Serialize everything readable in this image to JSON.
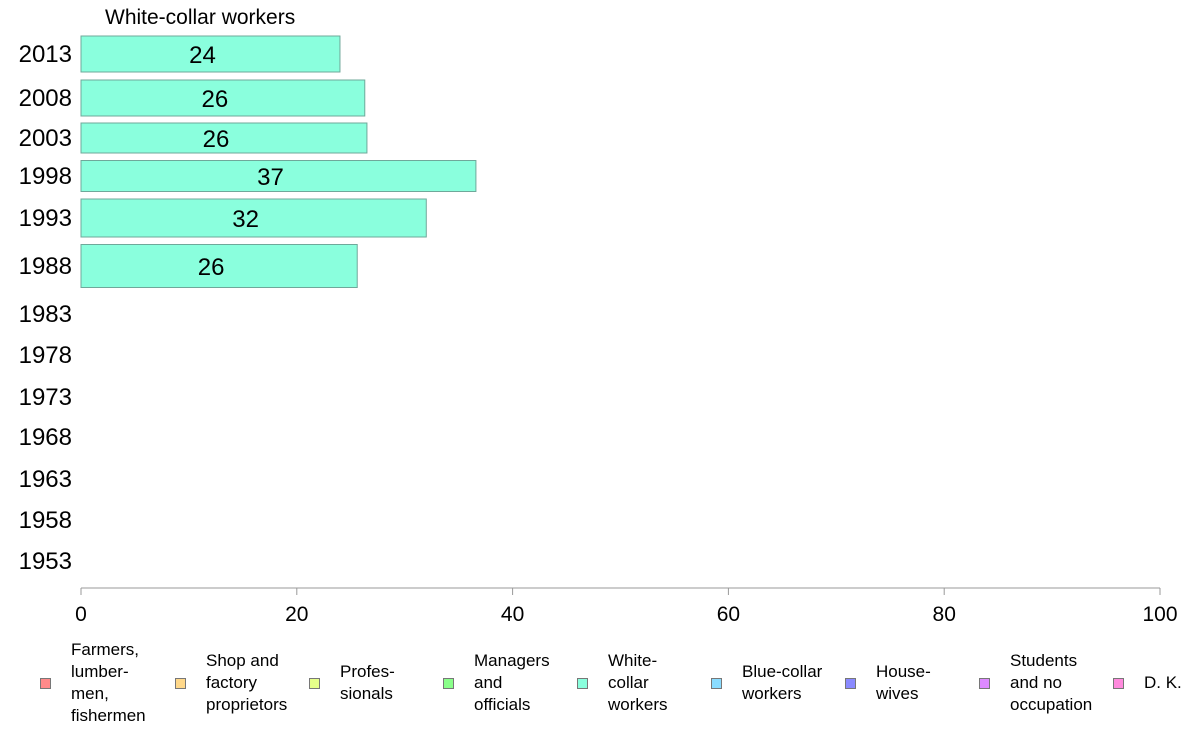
{
  "chart_data": {
    "type": "bar",
    "orientation": "horizontal",
    "title": "White-collar workers",
    "categories": [
      "2013",
      "2008",
      "2003",
      "1998",
      "1993",
      "1988",
      "1983",
      "1978",
      "1973",
      "1968",
      "1963",
      "1958",
      "1953"
    ],
    "series": [
      {
        "name": "White-collar workers",
        "color": "#8affdd",
        "values": [
          24,
          26,
          26,
          37,
          32,
          26,
          null,
          null,
          null,
          null,
          null,
          null,
          null
        ],
        "bar_lengths": [
          24,
          26.3,
          26.5,
          36.6,
          32,
          25.6,
          null,
          null,
          null,
          null,
          null,
          null,
          null
        ]
      }
    ],
    "xlim": [
      0,
      100
    ],
    "xticks": [
      "0",
      "20",
      "40",
      "60",
      "80",
      "100"
    ],
    "grid": false,
    "legend_position": "bottom"
  },
  "legend": [
    {
      "label": "Farmers,\nlumber-\nmen,\nfishermen",
      "color": "#ff8a8a"
    },
    {
      "label": "Shop and\nfactory\nproprietors",
      "color": "#ffd88a"
    },
    {
      "label": "Profes-\nsionals",
      "color": "#e6ff8a"
    },
    {
      "label": "Managers\nand\nofficials",
      "color": "#8aff8a"
    },
    {
      "label": "White-\ncollar\nworkers",
      "color": "#8affdd"
    },
    {
      "label": "Blue-collar\nworkers",
      "color": "#8adcff"
    },
    {
      "label": "House-\nwives",
      "color": "#8a8aff"
    },
    {
      "label": "Students\nand no\noccupation",
      "color": "#dd8aff"
    },
    {
      "label": "D. K.",
      "color": "#ff8add"
    }
  ]
}
